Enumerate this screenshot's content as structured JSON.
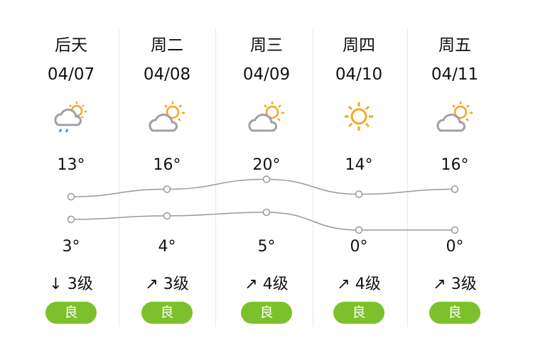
{
  "days": [
    {
      "day": "后天",
      "date": "04/07",
      "icon": "cloud-sun-rain-icon",
      "high": "13°",
      "low": "3°",
      "wind": "↓ 3级",
      "aqi": "良"
    },
    {
      "day": "周二",
      "date": "04/08",
      "icon": "partly-cloudy-icon",
      "high": "16°",
      "low": "4°",
      "wind": "↗ 3级",
      "aqi": "良"
    },
    {
      "day": "周三",
      "date": "04/09",
      "icon": "partly-cloudy-icon",
      "high": "20°",
      "low": "5°",
      "wind": "↗ 4级",
      "aqi": "良"
    },
    {
      "day": "周四",
      "date": "04/10",
      "icon": "sunny-icon",
      "high": "14°",
      "low": "0°",
      "wind": "↗ 4级",
      "aqi": "良"
    },
    {
      "day": "周五",
      "date": "04/11",
      "icon": "partly-cloudy-icon",
      "high": "16°",
      "low": "0°",
      "wind": "↗ 3级",
      "aqi": "良"
    }
  ],
  "temps_high": [
    13,
    16,
    20,
    14,
    16
  ],
  "temps_low": [
    3,
    4,
    5,
    0,
    0
  ],
  "colors": {
    "aqi_good": "#7cc12c",
    "sun": "#f5a623",
    "cloud": "#a0a0a8",
    "rain": "#2aa3e0",
    "line": "#999999"
  }
}
